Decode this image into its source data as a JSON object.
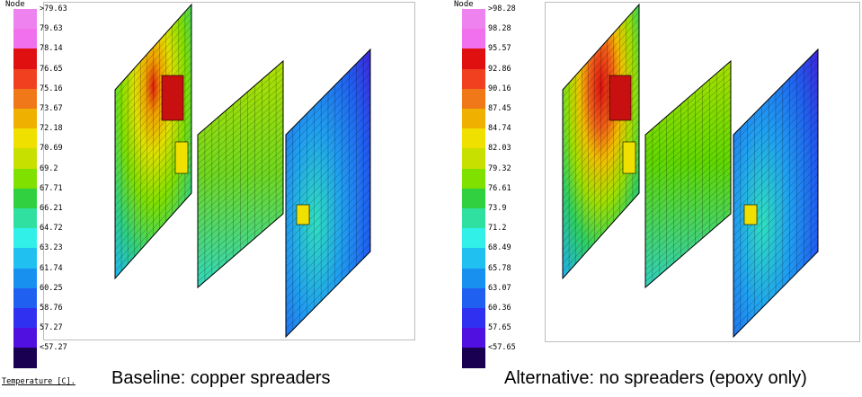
{
  "left": {
    "legend_title": "Node",
    "legend_labels": [
      ">79.63",
      "79.63",
      "78.14",
      "76.65",
      "75.16",
      "73.67",
      "72.18",
      "70.69",
      "69.2",
      "67.71",
      "66.21",
      "64.72",
      "63.23",
      "61.74",
      "60.25",
      "58.76",
      "57.27",
      "<57.27"
    ],
    "unit_label": "Temperature [C].",
    "caption": "Baseline: copper spreaders"
  },
  "right": {
    "legend_title": "Node",
    "legend_labels": [
      ">98.28",
      "98.28",
      "95.57",
      "92.86",
      "90.16",
      "87.45",
      "84.74",
      "82.03",
      "79.32",
      "76.61",
      "73.9",
      "71.2",
      "68.49",
      "65.78",
      "63.07",
      "60.36",
      "57.65",
      "<57.65"
    ],
    "caption": "Alternative: no spreaders (epoxy only)"
  },
  "legend_colors": [
    "#ee82ee",
    "#f070ee",
    "#e01010",
    "#f04020",
    "#f07818",
    "#f0b000",
    "#f0e000",
    "#c8e000",
    "#80e000",
    "#30d040",
    "#30e0a0",
    "#30f0e8",
    "#20c0f0",
    "#1890f0",
    "#2060f0",
    "#3030f0",
    "#5010e0",
    "#1a0050"
  ]
}
